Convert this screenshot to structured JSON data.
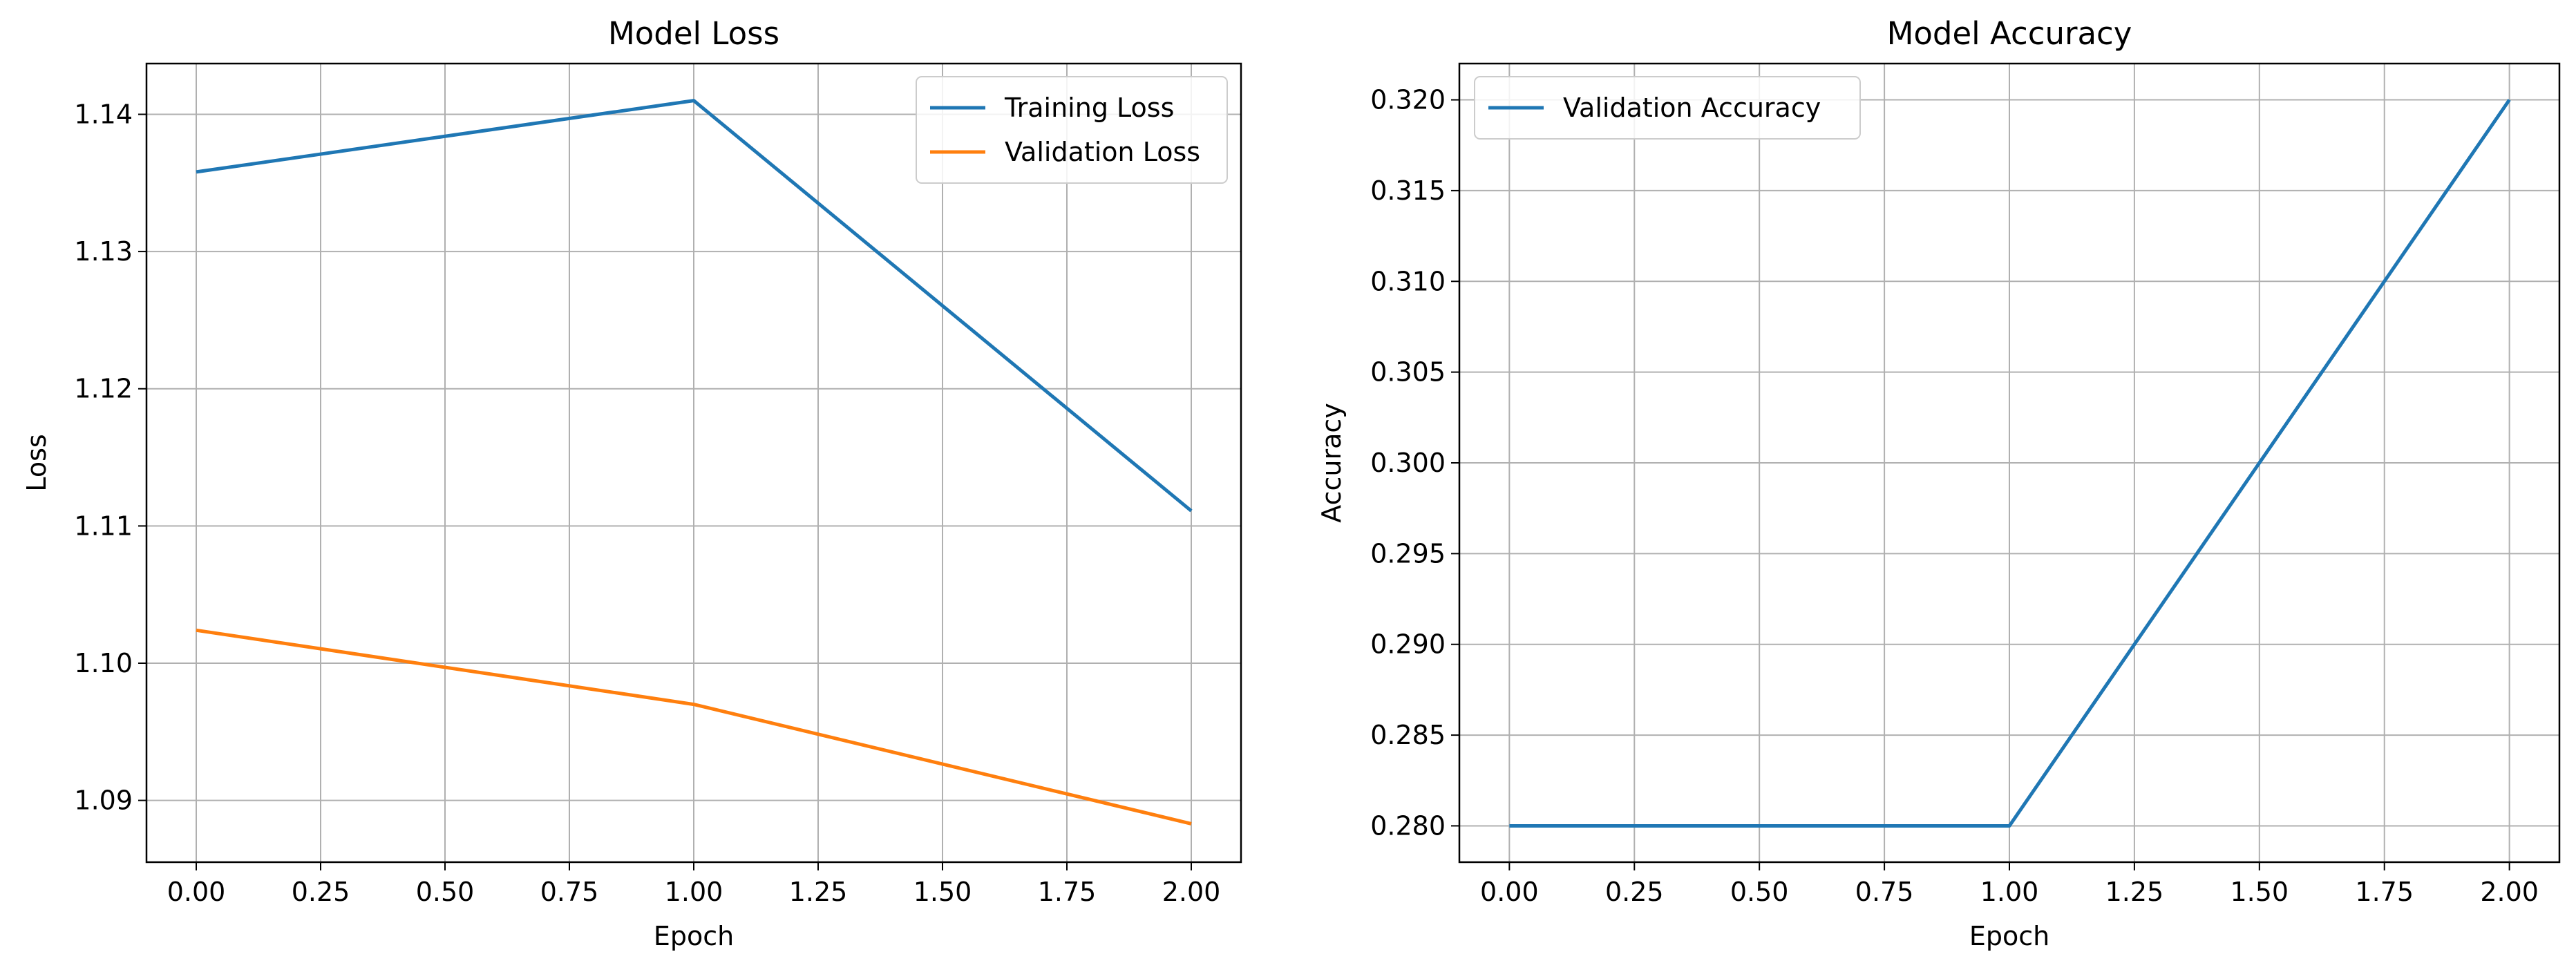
{
  "chart_data": [
    {
      "type": "line",
      "title": "Model Loss",
      "xlabel": "Epoch",
      "ylabel": "Loss",
      "x": [
        0,
        1,
        2
      ],
      "series": [
        {
          "name": "Training Loss",
          "values": [
            1.1358,
            1.141,
            1.1111
          ],
          "color": "#1f77b4"
        },
        {
          "name": "Validation Loss",
          "values": [
            1.1024,
            1.097,
            1.0883
          ],
          "color": "#ff7f0e"
        }
      ],
      "xlim": [
        -0.1,
        2.1
      ],
      "ylim": [
        1.0855,
        1.1437
      ],
      "xticks": [
        "0.00",
        "0.25",
        "0.50",
        "0.75",
        "1.00",
        "1.25",
        "1.50",
        "1.75",
        "2.00"
      ],
      "yticks": [
        "1.09",
        "1.10",
        "1.11",
        "1.12",
        "1.13",
        "1.14"
      ],
      "grid": true,
      "legend": "upper right"
    },
    {
      "type": "line",
      "title": "Model Accuracy",
      "xlabel": "Epoch",
      "ylabel": "Accuracy",
      "x": [
        0,
        1,
        2
      ],
      "series": [
        {
          "name": "Validation Accuracy",
          "values": [
            0.28,
            0.28,
            0.32
          ],
          "color": "#1f77b4"
        }
      ],
      "xlim": [
        -0.1,
        2.1
      ],
      "ylim": [
        0.278,
        0.322
      ],
      "xticks": [
        "0.00",
        "0.25",
        "0.50",
        "0.75",
        "1.00",
        "1.25",
        "1.50",
        "1.75",
        "2.00"
      ],
      "yticks": [
        "0.280",
        "0.285",
        "0.290",
        "0.295",
        "0.300",
        "0.305",
        "0.310",
        "0.315",
        "0.320"
      ],
      "grid": true,
      "legend": "upper left"
    }
  ]
}
